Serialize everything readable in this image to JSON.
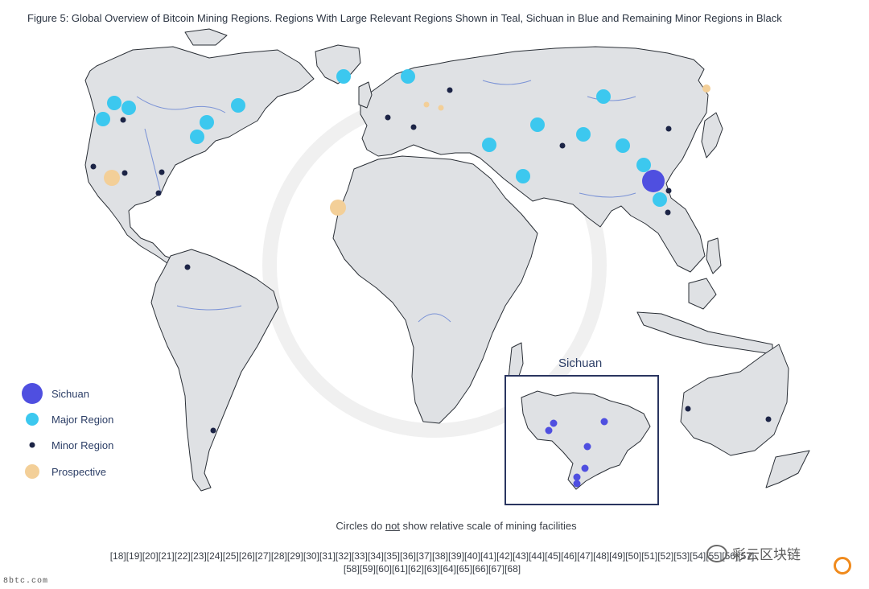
{
  "figure": {
    "title": "Figure 5: Global Overview of Bitcoin Mining Regions. Regions With Large Relevant Regions Shown in Teal, Sichuan in Blue and Remaining Minor Regions in Black"
  },
  "colors": {
    "land": "#dfe1e4",
    "border": "#2a2f36",
    "river": "#7b93d6",
    "sichuan": "#4f4fe0",
    "major": "#3cc8ef",
    "minor": "#1c2446",
    "prospective": "#f3cf98",
    "inset_border": "#2a3560"
  },
  "legend": {
    "items": [
      {
        "label": "Sichuan",
        "type": "sichuan"
      },
      {
        "label": "Major Region",
        "type": "major"
      },
      {
        "label": "Minor Region",
        "type": "minor"
      },
      {
        "label": "Prospective",
        "type": "prospective"
      }
    ]
  },
  "inset": {
    "title": "Sichuan"
  },
  "caption": {
    "before": "Circles do ",
    "emph": "not",
    "after": " show relative scale of mining facilities"
  },
  "references": {
    "line1": "[18][19][20][21][22][23][24][25][26][27][28][29][30][31][32][33][34][35][36][37][38][39][40][41][42][43][44][45][46][47][48][49][50][51][52][53][54][55][56][57]",
    "line2": "[58][59][60][61][62][63][64][65][66][67][68]"
  },
  "watermark": {
    "source": "8btc.com",
    "account": "彩云区块链"
  }
}
